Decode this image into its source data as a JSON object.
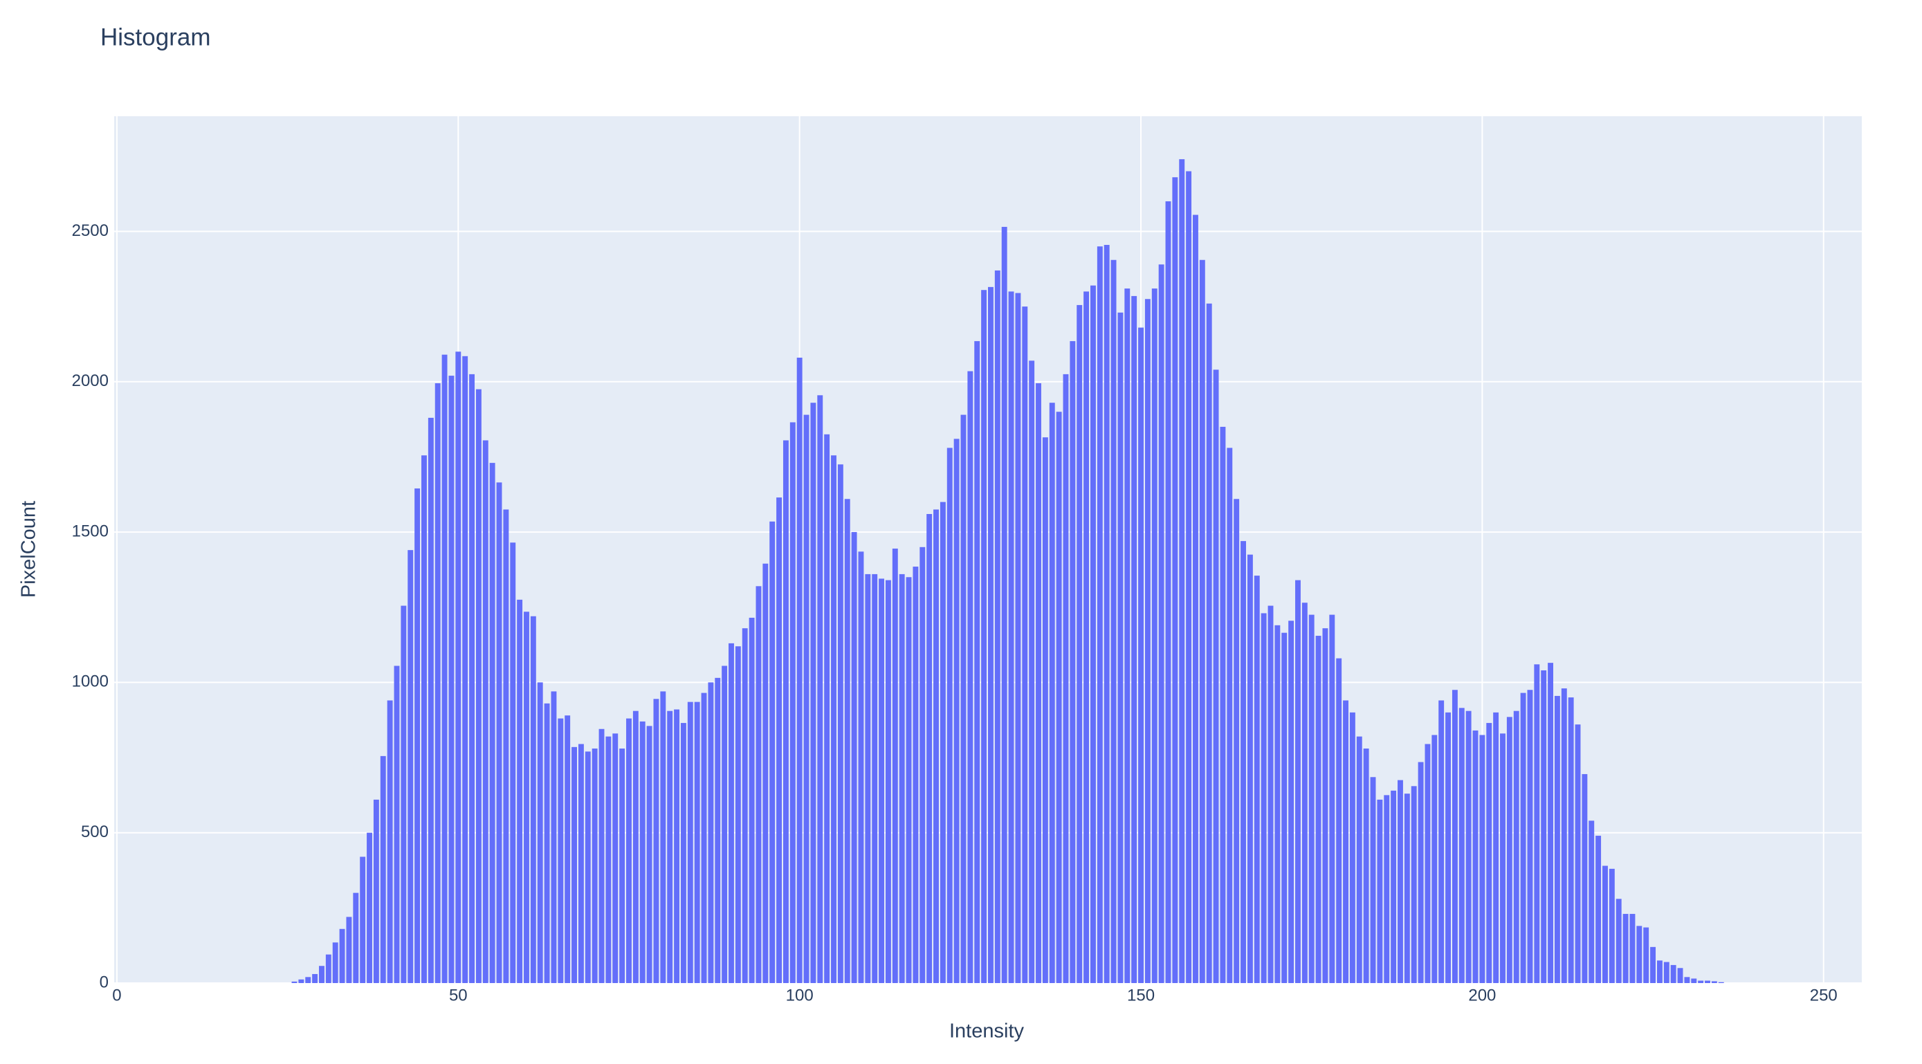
{
  "chart_data": {
    "type": "bar",
    "title": "Histogram",
    "x_label": "Intensity",
    "y_label": "PixelCount",
    "x": [
      26,
      27,
      28,
      29,
      30,
      31,
      32,
      33,
      34,
      35,
      36,
      37,
      38,
      39,
      40,
      41,
      42,
      43,
      44,
      45,
      46,
      47,
      48,
      49,
      50,
      51,
      52,
      53,
      54,
      55,
      56,
      57,
      58,
      59,
      60,
      61,
      62,
      63,
      64,
      65,
      66,
      67,
      68,
      69,
      70,
      71,
      72,
      73,
      74,
      75,
      76,
      77,
      78,
      79,
      80,
      81,
      82,
      83,
      84,
      85,
      86,
      87,
      88,
      89,
      90,
      91,
      92,
      93,
      94,
      95,
      96,
      97,
      98,
      99,
      100,
      101,
      102,
      103,
      104,
      105,
      106,
      107,
      108,
      109,
      110,
      111,
      112,
      113,
      114,
      115,
      116,
      117,
      118,
      119,
      120,
      121,
      122,
      123,
      124,
      125,
      126,
      127,
      128,
      129,
      130,
      131,
      132,
      133,
      134,
      135,
      136,
      137,
      138,
      139,
      140,
      141,
      142,
      143,
      144,
      145,
      146,
      147,
      148,
      149,
      150,
      151,
      152,
      153,
      154,
      155,
      156,
      157,
      158,
      159,
      160,
      161,
      162,
      163,
      164,
      165,
      166,
      167,
      168,
      169,
      170,
      171,
      172,
      173,
      174,
      175,
      176,
      177,
      178,
      179,
      180,
      181,
      182,
      183,
      184,
      185,
      186,
      187,
      188,
      189,
      190,
      191,
      192,
      193,
      194,
      195,
      196,
      197,
      198,
      199,
      200,
      201,
      202,
      203,
      204,
      205,
      206,
      207,
      208,
      209,
      210,
      211,
      212,
      213,
      214,
      215,
      216,
      217,
      218,
      219,
      220,
      221,
      222,
      223,
      224,
      225,
      226,
      227,
      228,
      229,
      230,
      231,
      232,
      233,
      234,
      235
    ],
    "values": [
      5,
      12,
      20,
      30,
      57,
      95,
      135,
      180,
      220,
      300,
      420,
      500,
      610,
      755,
      940,
      1055,
      1255,
      1440,
      1645,
      1755,
      1880,
      1995,
      2090,
      2020,
      2100,
      2085,
      2025,
      1975,
      1805,
      1730,
      1665,
      1575,
      1465,
      1275,
      1235,
      1220,
      1000,
      930,
      970,
      880,
      890,
      785,
      795,
      770,
      780,
      845,
      820,
      830,
      780,
      880,
      905,
      870,
      855,
      945,
      970,
      905,
      910,
      865,
      935,
      935,
      965,
      1000,
      1015,
      1055,
      1130,
      1120,
      1180,
      1215,
      1320,
      1395,
      1535,
      1615,
      1805,
      1865,
      2080,
      1890,
      1930,
      1955,
      1825,
      1755,
      1725,
      1610,
      1500,
      1435,
      1360,
      1360,
      1345,
      1340,
      1445,
      1360,
      1350,
      1385,
      1450,
      1560,
      1575,
      1600,
      1780,
      1810,
      1890,
      2035,
      2135,
      2305,
      2315,
      2370,
      2515,
      2300,
      2295,
      2250,
      2070,
      1995,
      1815,
      1930,
      1900,
      2025,
      2135,
      2255,
      2300,
      2320,
      2450,
      2455,
      2405,
      2230,
      2310,
      2285,
      2180,
      2275,
      2310,
      2390,
      2600,
      2680,
      2740,
      2700,
      2555,
      2405,
      2260,
      2040,
      1850,
      1780,
      1610,
      1470,
      1425,
      1355,
      1230,
      1255,
      1190,
      1165,
      1205,
      1340,
      1265,
      1225,
      1155,
      1180,
      1225,
      1080,
      940,
      900,
      820,
      780,
      685,
      610,
      625,
      640,
      675,
      630,
      655,
      735,
      795,
      825,
      940,
      900,
      975,
      915,
      905,
      840,
      825,
      865,
      900,
      830,
      885,
      905,
      965,
      975,
      1060,
      1040,
      1065,
      955,
      980,
      950,
      860,
      695,
      540,
      490,
      390,
      380,
      280,
      230,
      230,
      190,
      185,
      120,
      75,
      70,
      60,
      50,
      20,
      15,
      8,
      8,
      6,
      3
    ],
    "color": "#636efa",
    "xlim": [
      -0.4,
      255.6
    ],
    "xticks": [
      0,
      50,
      100,
      150,
      200,
      250
    ],
    "ylim": [
      0,
      2883
    ],
    "yticks": [
      0,
      500,
      1000,
      1500,
      2000,
      2500
    ],
    "grid": true
  }
}
